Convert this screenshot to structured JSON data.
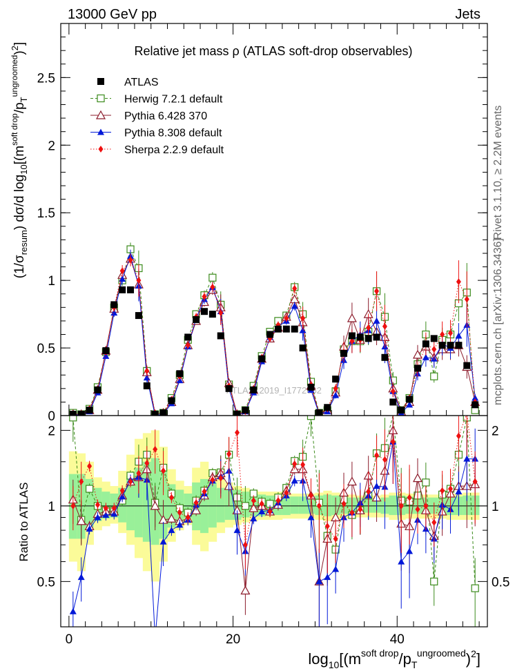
{
  "header": {
    "left": "13000 GeV pp",
    "right": "Jets"
  },
  "side_labels": {
    "rivet": "Rivet 3.1.10, ≥ 2.2M events",
    "mcplots": "mcplots.cern.ch [arXiv:1306.3436]"
  },
  "watermark": "ATLAS_2019_I1772062",
  "colors": {
    "atlas": "#000000",
    "herwig": "#3a8a1a",
    "pythia6": "#8b1a2a",
    "pythia8": "#0018d8",
    "sherpa": "#ee1111",
    "band_inner": "#99f099",
    "band_outer": "#fbfb99"
  },
  "chart_data": [
    {
      "type": "scatter",
      "title": "Relative jet mass  ρ (ATLAS soft-drop observables)",
      "xlabel": "log10[(m^(soft drop)/pT^(ungroomed))^2]",
      "ylabel": "(1/σresum) dσ/d log10[(m^(soft drop)/pT^(ungroomed))^2]",
      "xlim": [
        -1,
        51
      ],
      "ylim": [
        0,
        2.9
      ],
      "x_ticks": [
        0,
        20,
        40
      ],
      "y_ticks": [
        0,
        0.5,
        1,
        1.5,
        2,
        2.5
      ],
      "y_tick_labels": [
        "0",
        "0.5",
        "1",
        "1.5",
        "2",
        "2.5"
      ],
      "legend": {
        "position": "top-left",
        "entries": [
          "ATLAS",
          "Herwig 7.2.1 default",
          "Pythia 6.428 370",
          "Pythia 8.308 default",
          "Sherpa 2.2.9 default"
        ]
      },
      "x": [
        0.5,
        1.5,
        2.5,
        3.5,
        4.5,
        5.5,
        6.5,
        7.5,
        8.5,
        9.5,
        10.5,
        11.5,
        12.5,
        13.5,
        14.5,
        15.5,
        16.5,
        17.5,
        18.5,
        19.5,
        20.5,
        21.5,
        22.5,
        23.5,
        24.5,
        25.5,
        26.5,
        27.5,
        28.5,
        29.5,
        30.5,
        31.5,
        32.5,
        33.5,
        34.5,
        35.5,
        36.5,
        37.5,
        38.5,
        39.5,
        40.5,
        41.5,
        42.5,
        43.5,
        44.5,
        45.5,
        46.5,
        47.5,
        48.5,
        49.5
      ],
      "series": [
        {
          "name": "ATLAS",
          "values": [
            0.01,
            0.01,
            0.04,
            0.19,
            0.48,
            0.82,
            0.93,
            0.93,
            0.74,
            0.22,
            0.01,
            0.02,
            0.11,
            0.31,
            0.58,
            0.71,
            0.77,
            0.75,
            0.59,
            0.2,
            0.01,
            0.04,
            0.19,
            0.42,
            0.6,
            0.64,
            0.64,
            0.64,
            0.5,
            0.21,
            0.02,
            0.06,
            0.27,
            0.46,
            0.59,
            0.58,
            0.57,
            0.58,
            0.43,
            0.1,
            0.04,
            0.12,
            0.35,
            0.53,
            0.57,
            0.52,
            0.52,
            0.52,
            0.37,
            0.08
          ]
        },
        {
          "name": "Herwig 7.2.1 default",
          "values": [
            0.02,
            0.01,
            0.05,
            0.21,
            0.47,
            0.8,
            1.0,
            1.23,
            1.09,
            0.33,
            0.01,
            0.02,
            0.13,
            0.3,
            0.56,
            0.75,
            0.89,
            1.02,
            0.82,
            0.23,
            0.01,
            0.04,
            0.22,
            0.44,
            0.62,
            0.7,
            0.74,
            0.95,
            0.75,
            0.25,
            0.02,
            0.04,
            0.18,
            0.49,
            0.55,
            0.55,
            0.62,
            0.92,
            0.73,
            0.26,
            0.04,
            0.13,
            0.38,
            0.6,
            0.29,
            0.56,
            0.6,
            0.83,
            0.91,
            0.04
          ]
        },
        {
          "name": "Pythia 6.428 370",
          "values": [
            0.01,
            0.01,
            0.04,
            0.19,
            0.48,
            0.79,
            1.04,
            1.16,
            0.97,
            0.32,
            0.01,
            0.02,
            0.1,
            0.27,
            0.52,
            0.7,
            0.84,
            0.93,
            0.8,
            0.24,
            0.01,
            0.02,
            0.19,
            0.42,
            0.57,
            0.65,
            0.73,
            0.86,
            0.69,
            0.22,
            0.01,
            0.04,
            0.17,
            0.51,
            0.72,
            0.56,
            0.75,
            0.62,
            0.58,
            0.2,
            0.03,
            0.1,
            0.45,
            0.51,
            0.43,
            0.49,
            0.49,
            0.52,
            0.36,
            0.1
          ]
        },
        {
          "name": "Pythia 8.308 default",
          "values": [
            0.0,
            0.01,
            0.03,
            0.17,
            0.44,
            0.76,
            1.01,
            1.18,
            0.96,
            0.28,
            0.0,
            0.01,
            0.09,
            0.26,
            0.51,
            0.72,
            0.86,
            0.95,
            0.77,
            0.2,
            0.0,
            0.03,
            0.17,
            0.4,
            0.58,
            0.66,
            0.7,
            0.81,
            0.63,
            0.19,
            0.01,
            0.03,
            0.15,
            0.41,
            0.55,
            0.6,
            0.63,
            0.7,
            0.51,
            0.18,
            0.02,
            0.08,
            0.31,
            0.43,
            0.42,
            0.53,
            0.5,
            0.59,
            0.67,
            0.13
          ]
        },
        {
          "name": "Sherpa 2.2.9 default",
          "values": [
            0.01,
            0.01,
            0.05,
            0.19,
            0.47,
            0.8,
            1.07,
            1.15,
            1.0,
            0.33,
            0.02,
            0.02,
            0.12,
            0.29,
            0.52,
            0.73,
            0.88,
            0.95,
            0.76,
            0.22,
            0.01,
            0.03,
            0.2,
            0.43,
            0.57,
            0.67,
            0.72,
            0.94,
            0.72,
            0.23,
            0.02,
            0.05,
            0.2,
            0.47,
            0.55,
            0.56,
            0.65,
            0.92,
            0.66,
            0.18,
            0.04,
            0.13,
            0.34,
            0.53,
            0.49,
            0.6,
            0.61,
            0.99,
            0.86,
            0.1
          ]
        }
      ]
    },
    {
      "type": "line",
      "ylabel": "Ratio to ATLAS",
      "xlim": [
        -1,
        51
      ],
      "ylim": [
        0.33,
        2.29
      ],
      "x_ticks": [
        0,
        20,
        40
      ],
      "y_ticks": [
        0.5,
        1,
        2
      ],
      "y_tick_labels": [
        "0.5",
        "1",
        "2"
      ],
      "reference_line": 1,
      "x": [
        0.5,
        1.5,
        2.5,
        3.5,
        4.5,
        5.5,
        6.5,
        7.5,
        8.5,
        9.5,
        10.5,
        11.5,
        12.5,
        13.5,
        14.5,
        15.5,
        16.5,
        17.5,
        18.5,
        19.5,
        20.5,
        21.5,
        22.5,
        23.5,
        24.5,
        25.5,
        26.5,
        27.5,
        28.5,
        29.5,
        30.5,
        31.5,
        32.5,
        33.5,
        34.5,
        35.5,
        36.5,
        37.5,
        38.5,
        39.5,
        40.5,
        41.5,
        42.5,
        43.5,
        44.5,
        45.5,
        46.5,
        47.5,
        48.5,
        49.5
      ],
      "band_inner": [
        [
          0.74,
          1.34
        ],
        [
          0.74,
          1.34
        ],
        [
          0.82,
          1.28
        ],
        [
          0.87,
          1.18
        ],
        [
          0.89,
          1.14
        ],
        [
          0.9,
          1.12
        ],
        [
          0.86,
          1.18
        ],
        [
          0.8,
          1.32
        ],
        [
          0.75,
          1.42
        ],
        [
          0.72,
          1.5
        ],
        [
          0.7,
          1.55
        ],
        [
          0.74,
          1.4
        ],
        [
          0.82,
          1.22
        ],
        [
          0.86,
          1.16
        ],
        [
          0.89,
          1.12
        ],
        [
          0.8,
          1.24
        ],
        [
          0.78,
          1.28
        ],
        [
          0.82,
          1.24
        ],
        [
          0.86,
          1.18
        ],
        [
          0.88,
          1.16
        ],
        [
          0.88,
          1.16
        ],
        [
          0.9,
          1.14
        ],
        [
          0.91,
          1.12
        ],
        [
          0.91,
          1.11
        ],
        [
          0.92,
          1.1
        ],
        [
          0.92,
          1.1
        ],
        [
          0.92,
          1.09
        ],
        [
          0.93,
          1.09
        ],
        [
          0.93,
          1.09
        ],
        [
          0.93,
          1.09
        ],
        [
          0.92,
          1.1
        ],
        [
          0.91,
          1.11
        ],
        [
          0.92,
          1.1
        ],
        [
          0.93,
          1.08
        ],
        [
          0.93,
          1.08
        ],
        [
          0.93,
          1.08
        ],
        [
          0.94,
          1.07
        ],
        [
          0.94,
          1.07
        ],
        [
          0.93,
          1.08
        ],
        [
          0.92,
          1.1
        ],
        [
          0.92,
          1.1
        ],
        [
          0.93,
          1.09
        ],
        [
          0.93,
          1.08
        ],
        [
          0.93,
          1.08
        ],
        [
          0.93,
          1.08
        ],
        [
          0.93,
          1.08
        ],
        [
          0.92,
          1.09
        ],
        [
          0.92,
          1.09
        ],
        [
          0.92,
          1.1
        ],
        [
          0.92,
          1.1
        ]
      ],
      "band_outer": [
        [
          0.6,
          1.65
        ],
        [
          0.55,
          1.62
        ],
        [
          0.7,
          1.5
        ],
        [
          0.8,
          1.3
        ],
        [
          0.83,
          1.25
        ],
        [
          0.85,
          1.2
        ],
        [
          0.78,
          1.38
        ],
        [
          0.7,
          1.6
        ],
        [
          0.62,
          1.85
        ],
        [
          0.55,
          1.95
        ],
        [
          0.5,
          2.0
        ],
        [
          0.6,
          1.72
        ],
        [
          0.72,
          1.4
        ],
        [
          0.8,
          1.26
        ],
        [
          0.84,
          1.2
        ],
        [
          0.7,
          1.42
        ],
        [
          0.66,
          1.5
        ],
        [
          0.72,
          1.4
        ],
        [
          0.78,
          1.3
        ],
        [
          0.82,
          1.24
        ],
        [
          0.84,
          1.2
        ],
        [
          0.86,
          1.18
        ],
        [
          0.87,
          1.16
        ],
        [
          0.88,
          1.14
        ],
        [
          0.88,
          1.14
        ],
        [
          0.88,
          1.14
        ],
        [
          0.89,
          1.12
        ],
        [
          0.89,
          1.12
        ],
        [
          0.89,
          1.12
        ],
        [
          0.89,
          1.12
        ],
        [
          0.88,
          1.13
        ],
        [
          0.87,
          1.15
        ],
        [
          0.88,
          1.13
        ],
        [
          0.89,
          1.11
        ],
        [
          0.9,
          1.11
        ],
        [
          0.9,
          1.1
        ],
        [
          0.9,
          1.1
        ],
        [
          0.9,
          1.1
        ],
        [
          0.9,
          1.11
        ],
        [
          0.88,
          1.13
        ],
        [
          0.88,
          1.13
        ],
        [
          0.89,
          1.12
        ],
        [
          0.89,
          1.11
        ],
        [
          0.89,
          1.11
        ],
        [
          0.89,
          1.11
        ],
        [
          0.89,
          1.11
        ],
        [
          0.88,
          1.12
        ],
        [
          0.88,
          1.12
        ],
        [
          0.88,
          1.13
        ],
        [
          0.88,
          1.13
        ]
      ],
      "series": [
        {
          "name": "Herwig 7.2.1 default",
          "values": [
            2.25,
            0.88,
            1.17,
            1.0,
            0.96,
            0.96,
            1.05,
            1.32,
            1.5,
            1.6,
            1.03,
            1.42,
            1.12,
            0.98,
            0.94,
            1.05,
            1.15,
            1.35,
            1.36,
            1.6,
            1.08,
            1.0,
            1.12,
            1.04,
            1.02,
            1.08,
            1.18,
            1.51,
            1.57,
            2.28,
            1.03,
            0.76,
            0.67,
            1.06,
            0.92,
            0.96,
            1.1,
            1.62,
            1.7,
            2.3,
            1.05,
            1.04,
            1.1,
            1.24,
            0.5,
            1.11,
            1.17,
            1.6,
            2.25,
            0.47
          ]
        },
        {
          "name": "Pythia 6.428 370",
          "values": [
            1.06,
            0.87,
            0.83,
            0.93,
            0.95,
            0.95,
            1.1,
            1.25,
            1.3,
            1.4,
            1.0,
            0.88,
            0.89,
            0.87,
            0.89,
            0.96,
            1.1,
            1.3,
            1.35,
            1.2,
            0.96,
            0.46,
            0.98,
            1.0,
            0.95,
            1.01,
            1.15,
            1.4,
            1.4,
            1.1,
            0.5,
            0.74,
            0.9,
            1.13,
            1.25,
            0.96,
            1.32,
            1.08,
            1.38,
            2.0,
            0.85,
            0.83,
            1.29,
            0.96,
            0.76,
            0.95,
            1.12,
            1.2,
            1.2,
            1.22
          ]
        },
        {
          "name": "Pythia 8.308 default",
          "values": [
            0.38,
            0.52,
            0.81,
            0.9,
            0.92,
            0.93,
            1.09,
            1.27,
            1.3,
            1.27,
            0.0,
            0.72,
            0.8,
            0.84,
            0.88,
            1.01,
            1.12,
            1.26,
            1.31,
            1.38,
            0.8,
            0.66,
            0.89,
            0.95,
            0.96,
            1.03,
            1.1,
            1.26,
            1.26,
            0.9,
            0.5,
            0.52,
            0.56,
            0.9,
            0.94,
            1.03,
            1.1,
            1.2,
            1.19,
            1.8,
            0.6,
            0.66,
            0.88,
            0.81,
            0.74,
            1.01,
            0.97,
            1.14,
            1.54,
            1.54
          ]
        },
        {
          "name": "Sherpa 2.2.9 default",
          "values": [
            1.0,
            1.25,
            1.44,
            1.01,
            0.98,
            0.98,
            1.15,
            1.25,
            1.35,
            1.48,
            1.68,
            1.38,
            1.08,
            0.94,
            0.9,
            1.03,
            1.14,
            1.27,
            1.29,
            1.61,
            1.96,
            0.7,
            1.05,
            1.02,
            0.95,
            1.05,
            1.13,
            1.47,
            1.46,
            1.1,
            1.0,
            0.83,
            0.74,
            1.02,
            0.94,
            0.97,
            1.14,
            1.59,
            1.53,
            1.8,
            1.0,
            1.08,
            0.97,
            1.0,
            0.86,
            1.15,
            1.17,
            1.9,
            2.33,
            1.25
          ]
        }
      ]
    }
  ]
}
